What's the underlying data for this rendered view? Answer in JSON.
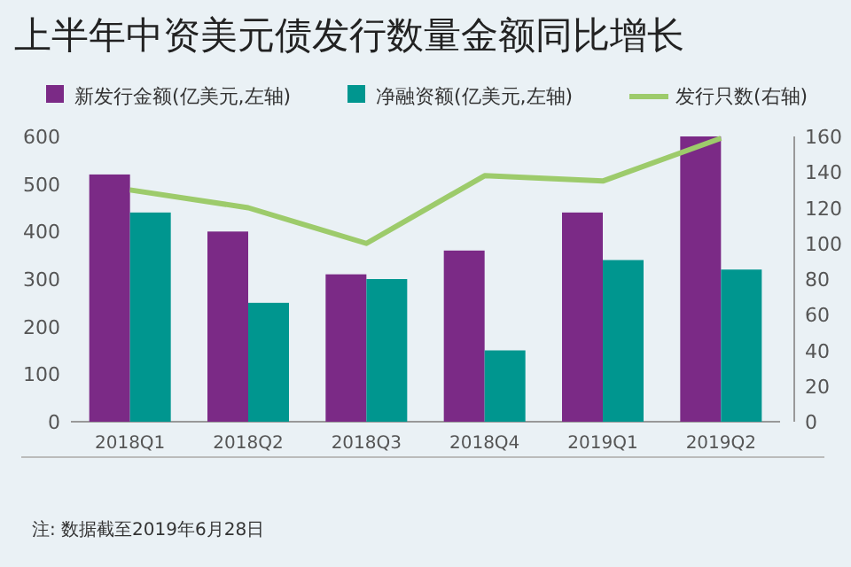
{
  "chart_data": {
    "type": "bar",
    "title": "上半年中资美元债发行数量金额同比增长",
    "categories": [
      "2018Q1",
      "2018Q2",
      "2018Q3",
      "2018Q4",
      "2019Q1",
      "2019Q2"
    ],
    "series": [
      {
        "name": "新发行金额(亿美元,左轴)",
        "color": "#7b2a86",
        "values": [
          520,
          400,
          310,
          360,
          440,
          600
        ]
      },
      {
        "name": "净融资额(亿美元,左轴)",
        "color": "#00968f",
        "values": [
          440,
          250,
          300,
          150,
          340,
          320
        ]
      },
      {
        "name": "发行只数(右轴)",
        "type": "line",
        "axis": "y2",
        "color": "#9dcb6b",
        "values": [
          130,
          120,
          100,
          138,
          135,
          159
        ]
      }
    ],
    "ylim": [
      0,
      600
    ],
    "yticks": [
      0,
      100,
      200,
      300,
      400,
      500,
      600
    ],
    "y2lim": [
      0,
      160
    ],
    "y2ticks": [
      0,
      20,
      40,
      60,
      80,
      100,
      120,
      140,
      160
    ],
    "legend": "top",
    "grid": false,
    "annotations": [
      "注: 数据截至2019年6月28日"
    ]
  }
}
